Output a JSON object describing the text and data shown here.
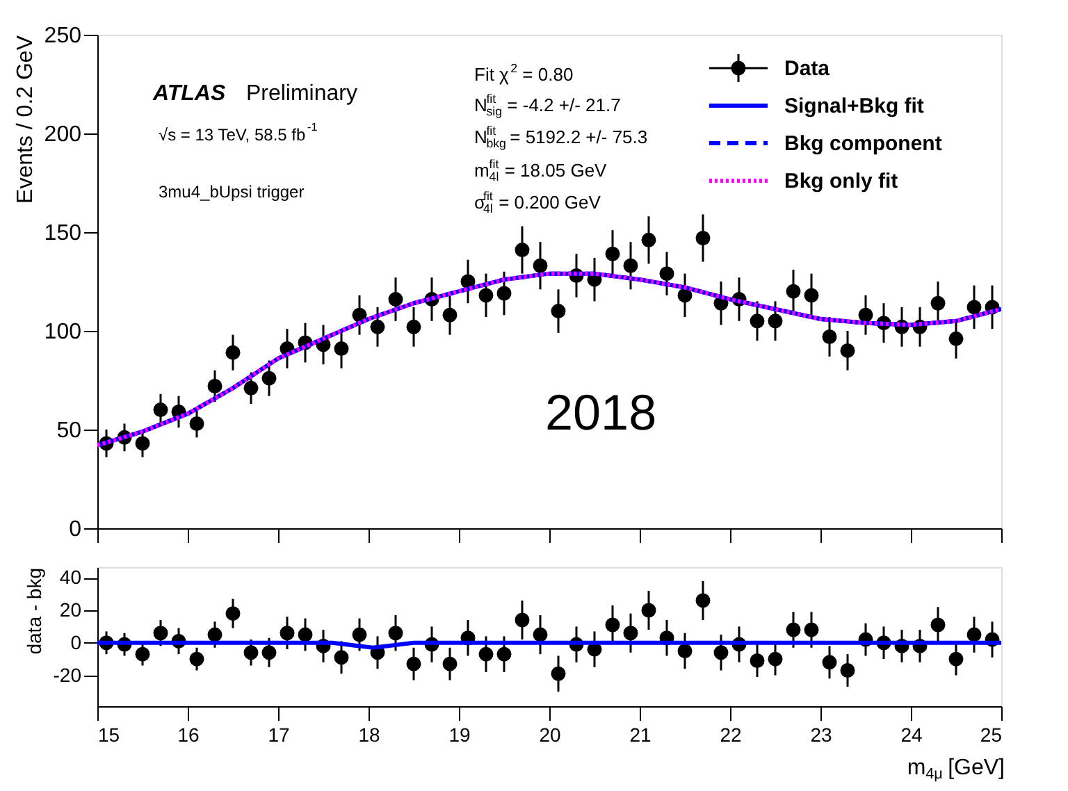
{
  "chart_data": [
    {
      "type": "scatter",
      "ylabel": "Events / 0.2 GeV",
      "xlim": [
        15,
        25
      ],
      "xticks": [
        15,
        16,
        17,
        18,
        19,
        20,
        21,
        22,
        23,
        24,
        25
      ],
      "tick_labels": "y",
      "ylim": [
        0,
        250
      ],
      "yticks": [
        0,
        50,
        100,
        150,
        200,
        250
      ],
      "grid": false,
      "legend": "top right",
      "annotations": [
        "ATLAS Preliminary",
        "√s = 13 TeV, 58.5 fb$^{-1}$",
        "3mu4_bUpsi trigger",
        "Fit χ$^{2}$ = 0.80",
        "N$^{fit}$$_{sig}$ = -4.2 +/- 21.7",
        "N$^{fit}$$_{bkg}$ = 5192.2 +/- 75.3",
        "m$^{fit}$$_{4l}$ = 18.05 GeV",
        "σ$^{fit}$$_{4l}$ = 0.200 GeV",
        "2018"
      ],
      "x": [
        15.1,
        15.3,
        15.5,
        15.7,
        15.9,
        16.1,
        16.3,
        16.5,
        16.7,
        16.9,
        17.1,
        17.3,
        17.5,
        17.7,
        17.9,
        18.1,
        18.3,
        18.5,
        18.7,
        18.9,
        19.1,
        19.3,
        19.5,
        19.7,
        19.9,
        20.1,
        20.3,
        20.5,
        20.7,
        20.9,
        21.1,
        21.3,
        21.5,
        21.7,
        21.9,
        22.1,
        22.3,
        22.5,
        22.7,
        22.9,
        23.1,
        23.3,
        23.5,
        23.7,
        23.9,
        24.1,
        24.3,
        24.5,
        24.7,
        24.9
      ],
      "series": [
        {
          "name": "Data",
          "type": "scatter",
          "color": "#000000",
          "marker": "circle",
          "values": [
            43,
            46,
            43,
            60,
            59,
            53,
            72,
            89,
            71,
            76,
            91,
            94,
            93,
            91,
            108,
            102,
            116,
            102,
            116,
            108,
            125,
            118,
            119,
            141,
            133,
            110,
            128,
            126,
            139,
            133,
            146,
            129,
            118,
            147,
            114,
            116,
            105,
            105,
            120,
            118,
            97,
            90,
            108,
            104,
            102,
            102,
            114,
            96,
            112,
            112
          ],
          "errors": [
            7,
            7,
            7,
            8,
            8,
            7,
            8,
            9,
            8,
            9,
            10,
            10,
            10,
            10,
            10,
            10,
            11,
            10,
            11,
            10,
            11,
            11,
            11,
            12,
            12,
            11,
            11,
            11,
            12,
            12,
            12,
            11,
            11,
            12,
            11,
            11,
            10,
            10,
            11,
            11,
            10,
            10,
            10,
            10,
            10,
            10,
            11,
            10,
            11,
            11
          ]
        },
        {
          "name": "Signal+Bkg fit",
          "type": "line",
          "color": "#0000ff",
          "line_style": "solid",
          "x": [
            15,
            15.5,
            16,
            16.5,
            17,
            17.5,
            18,
            18.5,
            19,
            19.5,
            20,
            20.5,
            21,
            21.5,
            22,
            22.5,
            23,
            23.5,
            24,
            24.5,
            25
          ],
          "values": [
            42,
            49,
            58,
            71,
            86,
            96,
            106,
            114,
            120,
            126,
            129,
            129,
            126,
            122,
            116,
            111,
            106,
            104,
            103,
            105,
            111
          ]
        },
        {
          "name": "Bkg component",
          "type": "line",
          "color": "#0000ff",
          "line_style": "dashed",
          "x": [
            15,
            15.5,
            16,
            16.5,
            17,
            17.5,
            18,
            18.5,
            19,
            19.5,
            20,
            20.5,
            21,
            21.5,
            22,
            22.5,
            23,
            23.5,
            24,
            24.5,
            25
          ],
          "values": [
            42,
            49,
            58,
            71,
            86,
            96,
            106,
            114,
            120,
            126,
            129,
            129,
            126,
            122,
            116,
            111,
            106,
            104,
            103,
            105,
            111
          ]
        },
        {
          "name": "Bkg only fit",
          "type": "line",
          "color": "#ff00ff",
          "line_style": "dotted",
          "x": [
            15,
            15.5,
            16,
            16.5,
            17,
            17.5,
            18,
            18.5,
            19,
            19.5,
            20,
            20.5,
            21,
            21.5,
            22,
            22.5,
            23,
            23.5,
            24,
            24.5,
            25
          ],
          "values": [
            42,
            49,
            58,
            71,
            86,
            96,
            106,
            114,
            120,
            126,
            129,
            129,
            126,
            122,
            116,
            111,
            106,
            104,
            103,
            105,
            111
          ]
        }
      ]
    },
    {
      "type": "scatter",
      "ylabel": "data - bkg",
      "xlabel": "m$_{4μ}$ [GeV]",
      "xlim": [
        15,
        25
      ],
      "xticks": [
        15,
        16,
        17,
        18,
        19,
        20,
        21,
        22,
        23,
        24,
        25
      ],
      "ylim": [
        -39,
        46.5
      ],
      "yticks": [
        -20,
        0,
        20,
        40
      ],
      "grid": false,
      "legend": false,
      "x": [
        15.1,
        15.3,
        15.5,
        15.7,
        15.9,
        16.1,
        16.3,
        16.5,
        16.7,
        16.9,
        17.1,
        17.3,
        17.5,
        17.7,
        17.9,
        18.1,
        18.3,
        18.5,
        18.7,
        18.9,
        19.1,
        19.3,
        19.5,
        19.7,
        19.9,
        20.1,
        20.3,
        20.5,
        20.7,
        20.9,
        21.1,
        21.3,
        21.5,
        21.7,
        21.9,
        22.1,
        22.3,
        22.5,
        22.7,
        22.9,
        23.1,
        23.3,
        23.5,
        23.7,
        23.9,
        24.1,
        24.3,
        24.5,
        24.7,
        24.9
      ],
      "series": [
        {
          "type": "scatter",
          "color": "#000000",
          "marker": "circle",
          "values": [
            0,
            -1,
            -7,
            6,
            1,
            -10,
            5,
            18,
            -6,
            -6,
            6,
            5,
            -2,
            -9,
            5,
            -6,
            6,
            -13,
            -1,
            -13,
            3,
            -7,
            -7,
            14,
            5,
            -19,
            -1,
            -4,
            11,
            6,
            20,
            3,
            -5,
            26,
            -6,
            -1,
            -11,
            -10,
            8,
            8,
            -12,
            -17,
            2,
            0,
            -2,
            -2,
            11,
            -10,
            5,
            2
          ],
          "errors": [
            7,
            7,
            7,
            8,
            8,
            7,
            8,
            9,
            8,
            9,
            10,
            10,
            10,
            10,
            10,
            10,
            11,
            10,
            11,
            10,
            11,
            11,
            11,
            12,
            12,
            11,
            11,
            11,
            12,
            12,
            12,
            11,
            11,
            12,
            11,
            11,
            10,
            10,
            11,
            11,
            10,
            10,
            10,
            10,
            10,
            10,
            11,
            10,
            11,
            11
          ]
        },
        {
          "type": "line",
          "color": "#0000ff",
          "line_style": "solid",
          "x": [
            15,
            17.6,
            17.9,
            18.05,
            18.2,
            18.5,
            25
          ],
          "values": [
            0,
            0,
            -2,
            -3,
            -2,
            0,
            0
          ]
        }
      ]
    }
  ]
}
